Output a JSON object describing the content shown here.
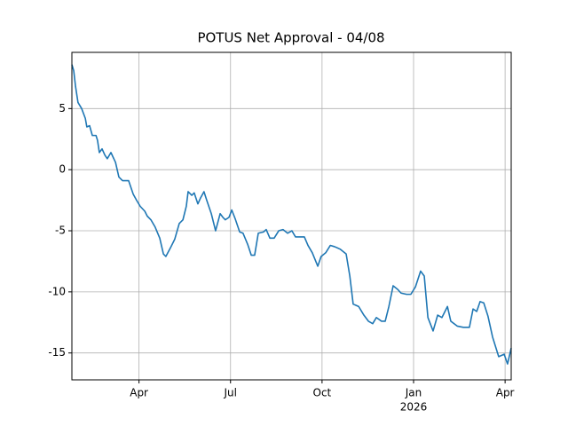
{
  "chart_data": {
    "type": "line",
    "title": "POTUS Net Approval - 04/08",
    "x": [
      1.8,
      1.86,
      1.92,
      2.0,
      2.12,
      2.24,
      2.29,
      2.38,
      2.47,
      2.59,
      2.64,
      2.7,
      2.79,
      2.88,
      2.96,
      3.08,
      3.23,
      3.34,
      3.46,
      3.66,
      3.81,
      3.92,
      4.04,
      4.19,
      4.27,
      4.39,
      4.53,
      4.68,
      4.8,
      4.88,
      5.03,
      5.17,
      5.32,
      5.44,
      5.55,
      5.61,
      5.73,
      5.81,
      5.93,
      6.02,
      6.13,
      6.22,
      6.37,
      6.51,
      6.66,
      6.75,
      6.83,
      6.95,
      7.04,
      7.15,
      7.3,
      7.41,
      7.56,
      7.68,
      7.79,
      7.91,
      8.08,
      8.17,
      8.29,
      8.43,
      8.58,
      8.72,
      8.87,
      9.01,
      9.13,
      9.28,
      9.42,
      9.54,
      9.68,
      9.86,
      9.97,
      10.12,
      10.27,
      10.41,
      10.59,
      10.79,
      10.91,
      11.02,
      11.2,
      11.37,
      11.52,
      11.66,
      11.78,
      11.95,
      12.07,
      12.19,
      12.33,
      12.48,
      12.59,
      12.77,
      12.91,
      13.06,
      13.23,
      13.35,
      13.47,
      13.64,
      13.79,
      13.93,
      14.11,
      14.22,
      14.43,
      14.63,
      14.83,
      14.95,
      15.07,
      15.18,
      15.3,
      15.44,
      15.59,
      15.79,
      15.97,
      16.08,
      16.2
    ],
    "series": [
      {
        "color": "#1f77b4",
        "values": [
          8.6,
          8.1,
          6.8,
          5.5,
          5.0,
          4.2,
          3.5,
          3.6,
          2.8,
          2.8,
          2.4,
          1.4,
          1.7,
          1.2,
          0.9,
          1.4,
          0.6,
          -0.6,
          -0.9,
          -0.9,
          -2.0,
          -2.5,
          -3.0,
          -3.4,
          -3.8,
          -4.1,
          -4.7,
          -5.6,
          -6.9,
          -7.1,
          -6.4,
          -5.7,
          -4.4,
          -4.1,
          -3.0,
          -1.8,
          -2.1,
          -1.9,
          -2.8,
          -2.3,
          -1.8,
          -2.5,
          -3.6,
          -5.0,
          -3.6,
          -3.9,
          -4.1,
          -3.9,
          -3.3,
          -4.0,
          -5.1,
          -5.2,
          -6.1,
          -7.0,
          -7.0,
          -5.2,
          -5.1,
          -4.9,
          -5.6,
          -5.6,
          -5.0,
          -4.9,
          -5.2,
          -5.0,
          -5.5,
          -5.5,
          -5.5,
          -6.2,
          -6.8,
          -7.9,
          -7.1,
          -6.8,
          -6.2,
          -6.3,
          -6.5,
          -6.9,
          -8.7,
          -11.0,
          -11.2,
          -11.9,
          -12.4,
          -12.6,
          -12.1,
          -12.4,
          -12.4,
          -11.2,
          -9.5,
          -9.8,
          -10.1,
          -10.2,
          -10.2,
          -9.6,
          -8.3,
          -8.7,
          -12.1,
          -13.2,
          -11.9,
          -12.1,
          -11.2,
          -12.4,
          -12.8,
          -12.9,
          -12.9,
          -11.4,
          -11.6,
          -10.8,
          -10.9,
          -12.0,
          -13.7,
          -15.3,
          -15.1,
          -15.9,
          -14.6
        ]
      }
    ],
    "xlim": [
      1.8,
      16.2
    ],
    "xticks": [
      {
        "value": 4,
        "label": "Apr"
      },
      {
        "value": 7,
        "label": "Jul"
      },
      {
        "value": 10,
        "label": "Oct"
      },
      {
        "value": 13,
        "label": "Jan",
        "sublabel": "2026"
      },
      {
        "value": 16,
        "label": "Apr"
      }
    ],
    "ylim": [
      -17.2,
      9.6
    ],
    "yticks": [
      -15,
      -10,
      -5,
      0,
      5
    ],
    "grid": true
  }
}
